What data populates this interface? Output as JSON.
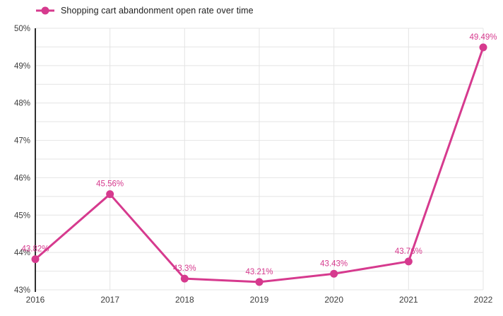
{
  "legend": {
    "label": "Shopping cart abandonment open rate over time"
  },
  "chart_data": {
    "type": "line",
    "title": "Shopping cart abandonment open rate over time",
    "categories": [
      "2016",
      "2017",
      "2018",
      "2019",
      "2020",
      "2021",
      "2022"
    ],
    "values": [
      43.82,
      45.56,
      43.3,
      43.21,
      43.43,
      43.76,
      49.49
    ],
    "point_labels": [
      "43.82%",
      "45.56%",
      "43.3%",
      "43.21%",
      "43.43%",
      "43.76%",
      "49.49%"
    ],
    "xlabel": "",
    "ylabel": "",
    "ylim": [
      43,
      50
    ],
    "ytick_labels": [
      "43%",
      "44%",
      "45%",
      "46%",
      "47%",
      "48%",
      "49%",
      "50%"
    ],
    "ytick_values": [
      43,
      44,
      45,
      46,
      47,
      48,
      49,
      50
    ],
    "grid": "on",
    "grid_minor_step": 0.5,
    "legend_position": "top-left",
    "colors": {
      "series": "#d63a8e",
      "grid": "#e4e4e4",
      "axis": "#2f2f2f",
      "tick_text": "#3d3d3d",
      "data_label": "#d63a8e",
      "background": "#ffffff"
    }
  }
}
